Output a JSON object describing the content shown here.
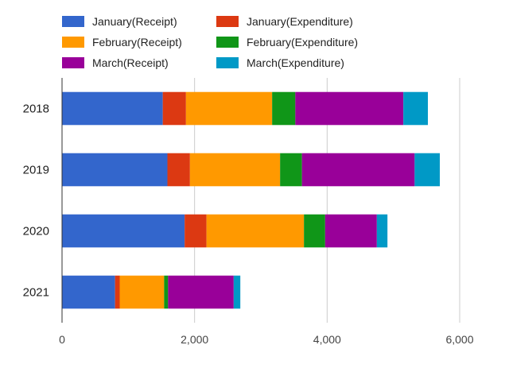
{
  "chart_data": {
    "type": "bar",
    "orientation": "horizontal",
    "stacked": true,
    "categories": [
      "2018",
      "2019",
      "2020",
      "2021"
    ],
    "series": [
      {
        "name": "January(Receipt)",
        "color": "#3366cc",
        "values": [
          1520,
          1590,
          1850,
          800
        ]
      },
      {
        "name": "January(Expenditure)",
        "color": "#dc3912",
        "values": [
          350,
          340,
          330,
          70
        ]
      },
      {
        "name": "February(Receipt)",
        "color": "#ff9900",
        "values": [
          1300,
          1360,
          1470,
          670
        ]
      },
      {
        "name": "February(Expenditure)",
        "color": "#109618",
        "values": [
          350,
          330,
          320,
          60
        ]
      },
      {
        "name": "March(Receipt)",
        "color": "#990099",
        "values": [
          1630,
          1700,
          780,
          990
        ]
      },
      {
        "name": "March(Expenditure)",
        "color": "#0099c6",
        "values": [
          370,
          380,
          160,
          100
        ]
      }
    ],
    "xlim": [
      0,
      6000
    ],
    "xticks": [
      0,
      2000,
      4000,
      6000
    ],
    "xtick_labels": [
      "0",
      "2,000",
      "4,000",
      "6,000"
    ],
    "title": "",
    "xlabel": "",
    "ylabel": "",
    "grid": true,
    "legend": "top"
  }
}
